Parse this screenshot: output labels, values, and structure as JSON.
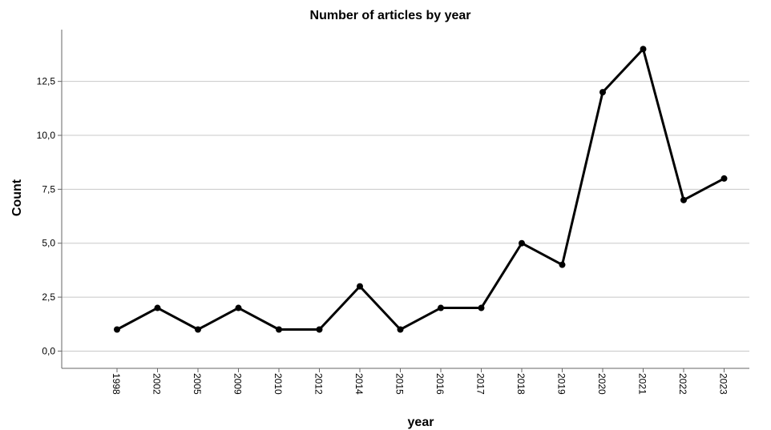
{
  "chart_data": {
    "type": "line",
    "title": "Number of articles by year",
    "xlabel": "year",
    "ylabel": "Count",
    "categories": [
      "1998",
      "2002",
      "2005",
      "2009",
      "2010",
      "2012",
      "2014",
      "2015",
      "2016",
      "2017",
      "2018",
      "2019",
      "2020",
      "2021",
      "2022",
      "2023"
    ],
    "series": [
      {
        "values": [
          1,
          2,
          1,
          2,
          1,
          1,
          3,
          1,
          2,
          2,
          5,
          4,
          12,
          14,
          7,
          8
        ]
      }
    ],
    "ylim": [
      -0.8,
      14.9
    ],
    "yticks": [
      0,
      2.5,
      5,
      7.5,
      10,
      12.5
    ],
    "ytick_labels": [
      "0,0",
      "2,5",
      "5,0",
      "7,5",
      "10,0",
      "12,5"
    ],
    "grid": true,
    "colors": {
      "line": "#000000",
      "grid": "#c8c8c8",
      "axis": "#666666"
    }
  }
}
